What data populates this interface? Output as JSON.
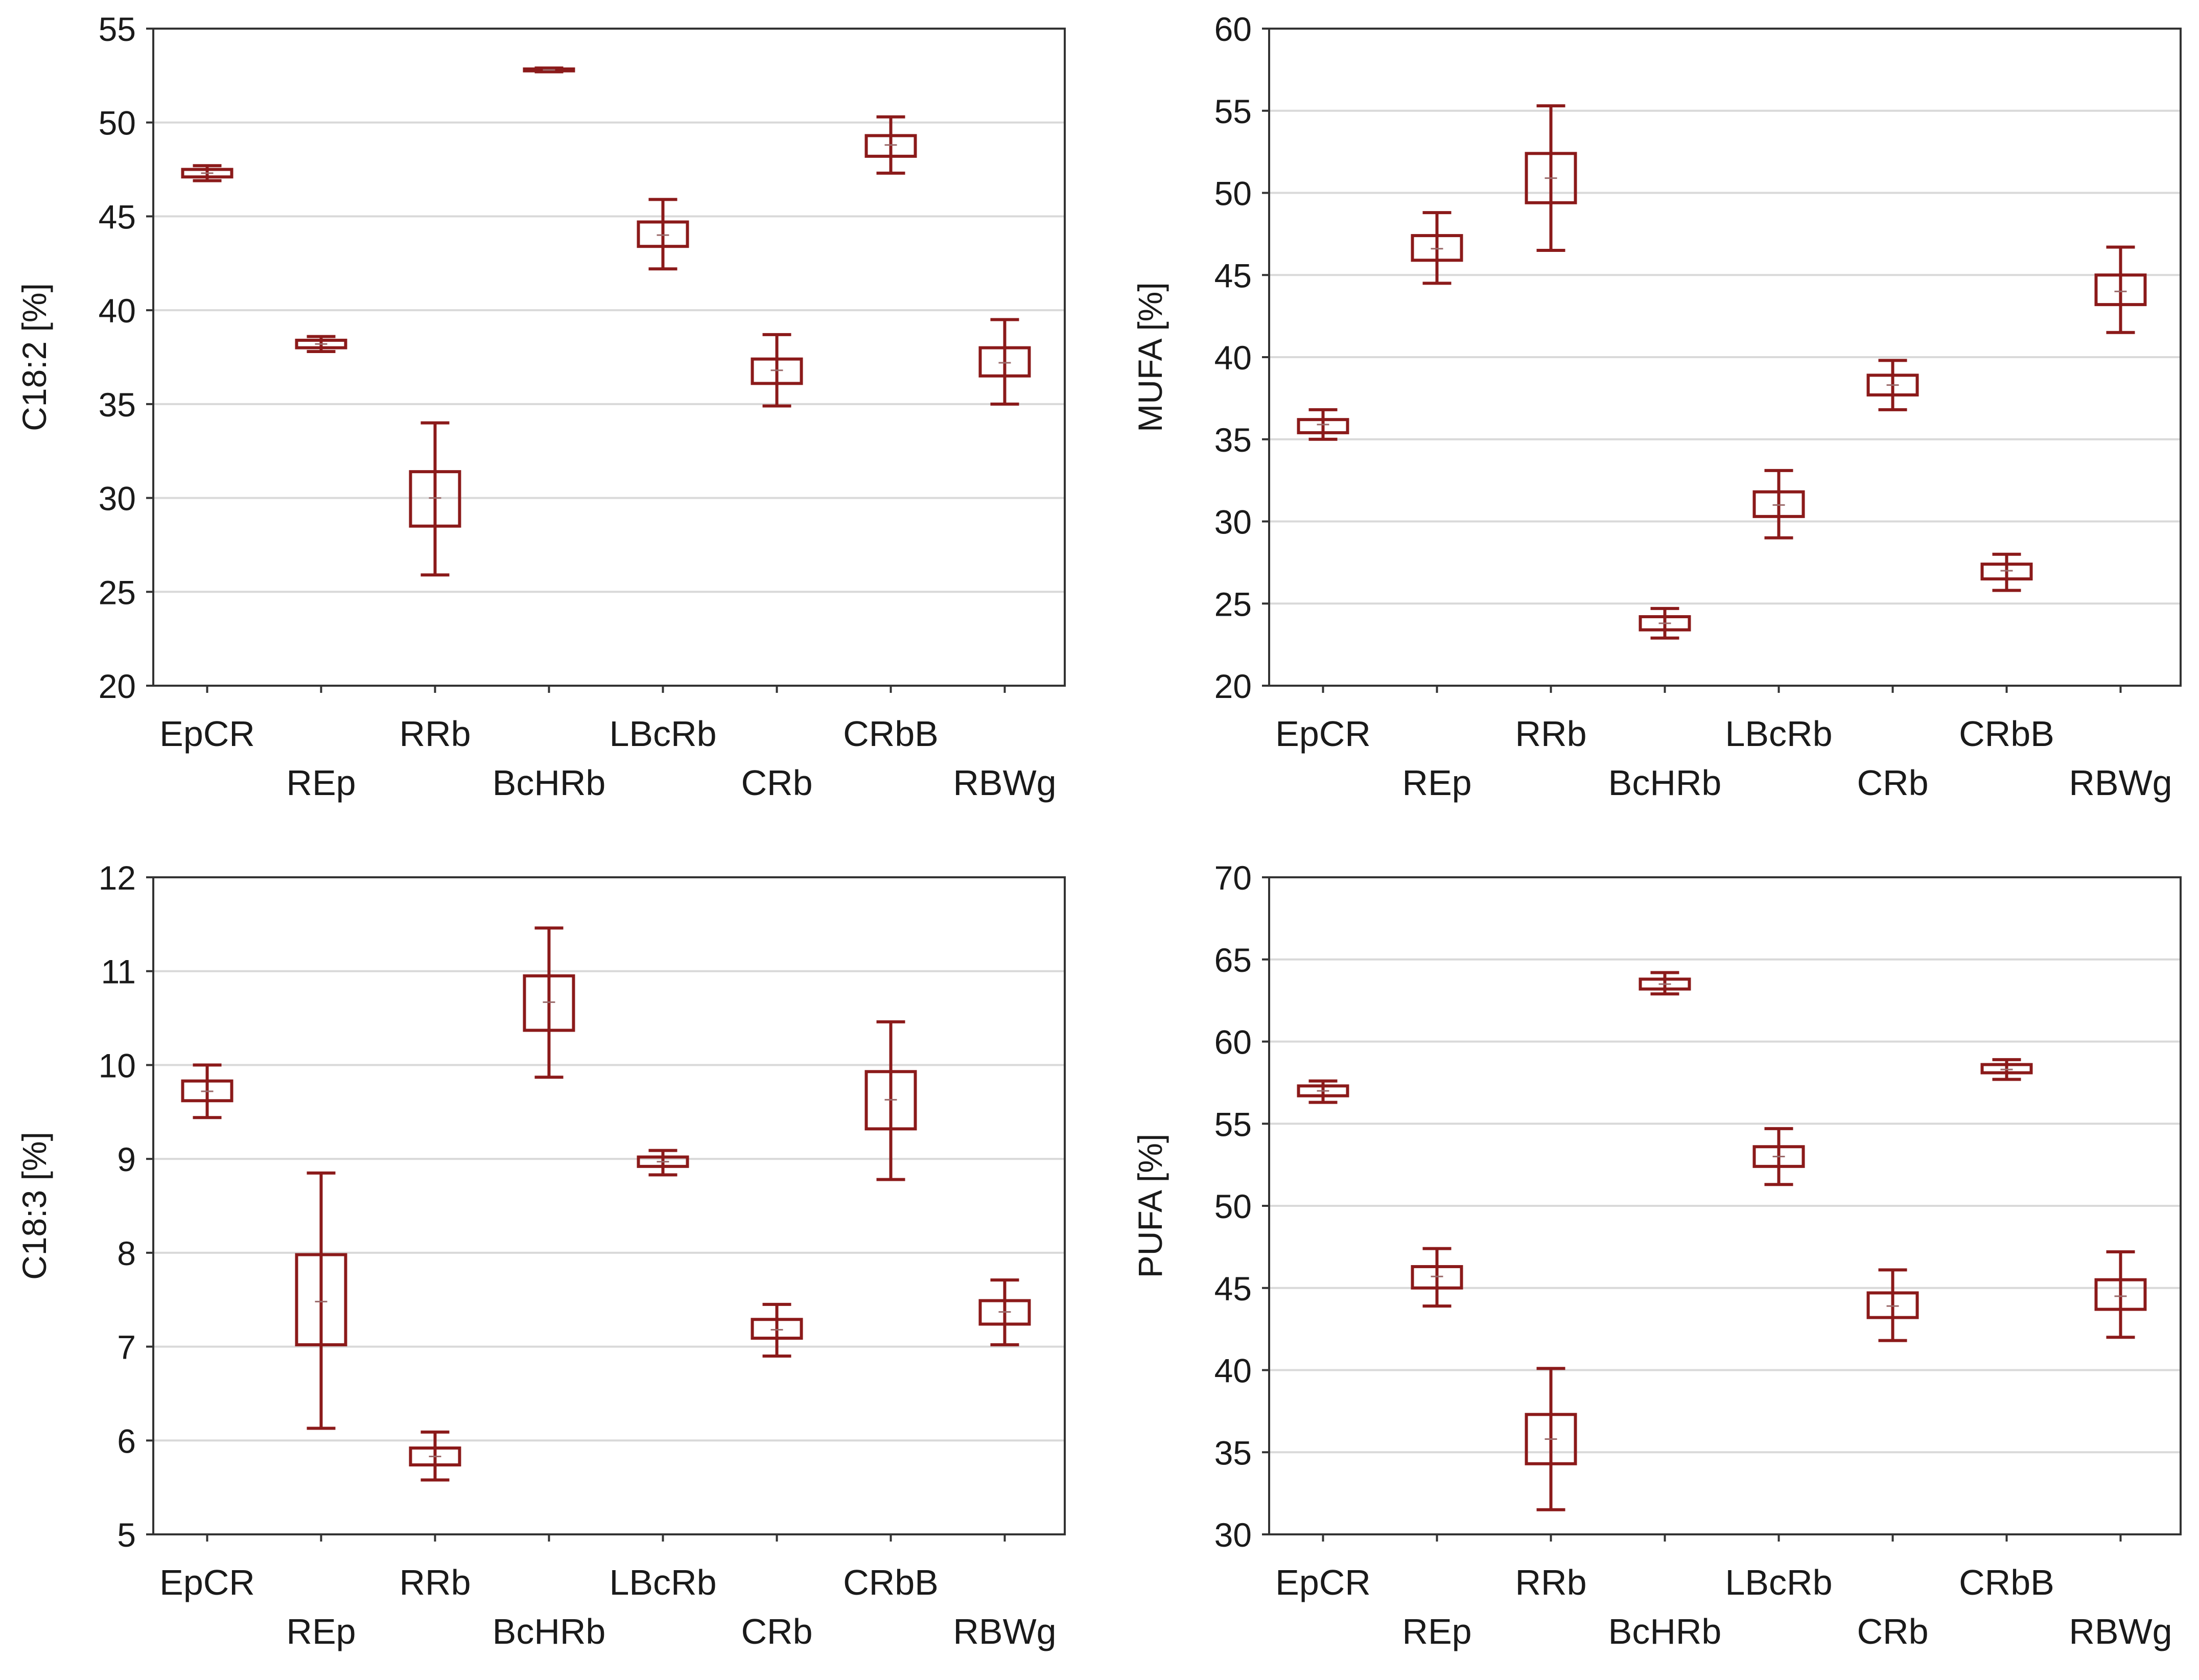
{
  "style": {
    "box_color": "#8b1a1a",
    "grid_color": "#d9d9d9"
  },
  "chart_data": [
    {
      "type": "box",
      "title": "",
      "xlabel": "",
      "ylabel": "C18:2 [%]",
      "ylim": [
        20,
        55
      ],
      "yticks": [
        20,
        25,
        30,
        35,
        40,
        45,
        50,
        55
      ],
      "grid": true,
      "categories": [
        "EpCR",
        "REp",
        "RRb",
        "BcHRb",
        "LBcRb",
        "CRb",
        "CRbB",
        "RBWg"
      ],
      "boxes": [
        {
          "min": 46.9,
          "q1": 47.1,
          "median": 47.3,
          "q3": 47.5,
          "max": 47.7
        },
        {
          "min": 37.8,
          "q1": 38.0,
          "median": 38.2,
          "q3": 38.4,
          "max": 38.6
        },
        {
          "min": 25.9,
          "q1": 28.5,
          "median": 30.0,
          "q3": 31.4,
          "max": 34.0
        },
        {
          "min": 52.7,
          "q1": 52.75,
          "median": 52.8,
          "q3": 52.85,
          "max": 52.9
        },
        {
          "min": 42.2,
          "q1": 43.4,
          "median": 44.0,
          "q3": 44.7,
          "max": 45.9
        },
        {
          "min": 34.9,
          "q1": 36.1,
          "median": 36.8,
          "q3": 37.4,
          "max": 38.7
        },
        {
          "min": 47.3,
          "q1": 48.2,
          "median": 48.8,
          "q3": 49.3,
          "max": 50.3
        },
        {
          "min": 35.0,
          "q1": 36.5,
          "median": 37.2,
          "q3": 38.0,
          "max": 39.5
        }
      ]
    },
    {
      "type": "box",
      "title": "",
      "xlabel": "",
      "ylabel": "MUFA [%]",
      "ylim": [
        20,
        60
      ],
      "yticks": [
        20,
        25,
        30,
        35,
        40,
        45,
        50,
        55,
        60
      ],
      "grid": true,
      "categories": [
        "EpCR",
        "REp",
        "RRb",
        "BcHRb",
        "LBcRb",
        "CRb",
        "CRbB",
        "RBWg"
      ],
      "boxes": [
        {
          "min": 35.0,
          "q1": 35.4,
          "median": 35.9,
          "q3": 36.2,
          "max": 36.8
        },
        {
          "min": 44.5,
          "q1": 45.9,
          "median": 46.6,
          "q3": 47.4,
          "max": 48.8
        },
        {
          "min": 46.5,
          "q1": 49.4,
          "median": 50.9,
          "q3": 52.4,
          "max": 55.3
        },
        {
          "min": 22.9,
          "q1": 23.4,
          "median": 23.8,
          "q3": 24.2,
          "max": 24.7
        },
        {
          "min": 29.0,
          "q1": 30.3,
          "median": 31.0,
          "q3": 31.8,
          "max": 33.1
        },
        {
          "min": 36.8,
          "q1": 37.7,
          "median": 38.3,
          "q3": 38.9,
          "max": 39.8
        },
        {
          "min": 25.8,
          "q1": 26.5,
          "median": 27.0,
          "q3": 27.4,
          "max": 28.0
        },
        {
          "min": 41.5,
          "q1": 43.2,
          "median": 44.0,
          "q3": 45.0,
          "max": 46.7
        }
      ]
    },
    {
      "type": "box",
      "title": "",
      "xlabel": "",
      "ylabel": "C18:3 [%]",
      "ylim": [
        5,
        12
      ],
      "yticks": [
        5,
        6,
        7,
        8,
        9,
        10,
        11,
        12
      ],
      "grid": true,
      "categories": [
        "EpCR",
        "REp",
        "RRb",
        "BcHRb",
        "LBcRb",
        "CRb",
        "CRbB",
        "RBWg"
      ],
      "boxes": [
        {
          "min": 9.44,
          "q1": 9.62,
          "median": 9.72,
          "q3": 9.83,
          "max": 10.0
        },
        {
          "min": 6.13,
          "q1": 7.02,
          "median": 7.48,
          "q3": 7.98,
          "max": 8.85
        },
        {
          "min": 5.58,
          "q1": 5.74,
          "median": 5.83,
          "q3": 5.92,
          "max": 6.09
        },
        {
          "min": 9.87,
          "q1": 10.37,
          "median": 10.67,
          "q3": 10.95,
          "max": 11.46
        },
        {
          "min": 8.83,
          "q1": 8.92,
          "median": 8.97,
          "q3": 9.02,
          "max": 9.09
        },
        {
          "min": 6.9,
          "q1": 7.09,
          "median": 7.18,
          "q3": 7.29,
          "max": 7.45
        },
        {
          "min": 8.78,
          "q1": 9.32,
          "median": 9.63,
          "q3": 9.93,
          "max": 10.46
        },
        {
          "min": 7.02,
          "q1": 7.24,
          "median": 7.37,
          "q3": 7.49,
          "max": 7.71
        }
      ]
    },
    {
      "type": "box",
      "title": "",
      "xlabel": "",
      "ylabel": "PUFA [%]",
      "ylim": [
        30,
        70
      ],
      "yticks": [
        30,
        35,
        40,
        45,
        50,
        55,
        60,
        65,
        70
      ],
      "grid": true,
      "categories": [
        "EpCR",
        "REp",
        "RRb",
        "BcHRb",
        "LBcRb",
        "CRb",
        "CRbB",
        "RBWg"
      ],
      "boxes": [
        {
          "min": 56.3,
          "q1": 56.7,
          "median": 57.0,
          "q3": 57.3,
          "max": 57.6
        },
        {
          "min": 43.9,
          "q1": 45.0,
          "median": 45.7,
          "q3": 46.3,
          "max": 47.4
        },
        {
          "min": 31.5,
          "q1": 34.3,
          "median": 35.8,
          "q3": 37.3,
          "max": 40.1
        },
        {
          "min": 62.9,
          "q1": 63.2,
          "median": 63.5,
          "q3": 63.8,
          "max": 64.2
        },
        {
          "min": 51.3,
          "q1": 52.4,
          "median": 53.0,
          "q3": 53.6,
          "max": 54.7
        },
        {
          "min": 41.8,
          "q1": 43.2,
          "median": 43.9,
          "q3": 44.7,
          "max": 46.1
        },
        {
          "min": 57.7,
          "q1": 58.1,
          "median": 58.3,
          "q3": 58.6,
          "max": 58.9
        },
        {
          "min": 42.0,
          "q1": 43.7,
          "median": 44.5,
          "q3": 45.5,
          "max": 47.2
        }
      ]
    }
  ]
}
